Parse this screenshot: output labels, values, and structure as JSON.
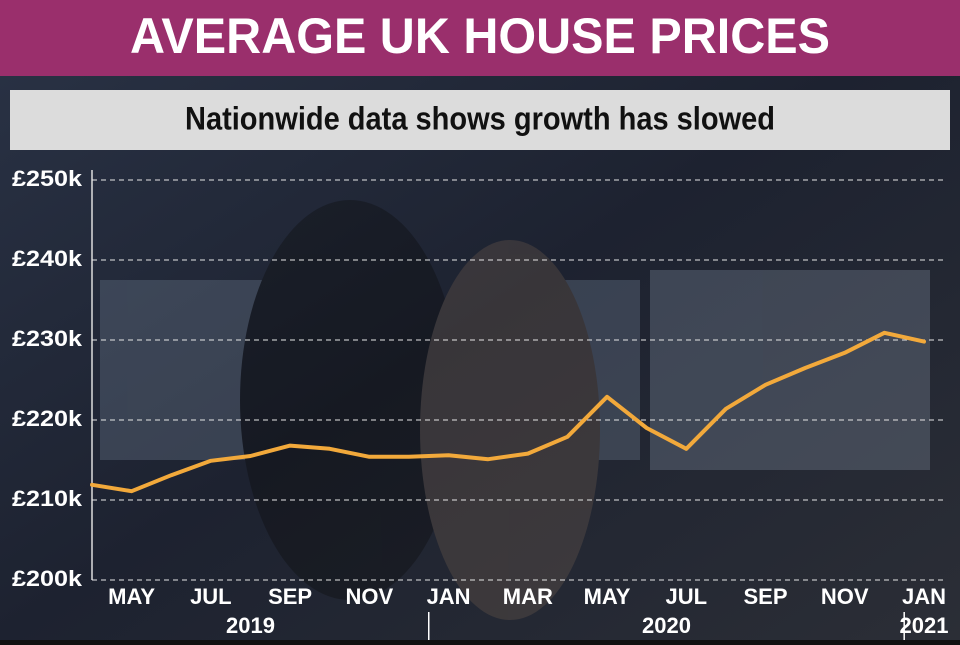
{
  "chart_data": {
    "type": "line",
    "title": "AVERAGE UK HOUSE PRICES",
    "subtitle": "Nationwide data shows growth has slowed",
    "categories": [
      null,
      "MAY",
      null,
      "JUL",
      null,
      "SEP",
      null,
      "NOV",
      null,
      "JAN",
      null,
      "MAR",
      null,
      "MAY",
      null,
      "JUL",
      null,
      "SEP",
      null,
      "NOV",
      null,
      "JAN"
    ],
    "year_labels": [
      "2019",
      "2020",
      "2021"
    ],
    "series": [
      {
        "name": "Average house price",
        "color": "#f2a93b",
        "values": [
          211900,
          211100,
          213100,
          214900,
          215500,
          216800,
          216400,
          215400,
          215400,
          215600,
          215100,
          215800,
          217900,
          222900,
          219000,
          216400,
          221400,
          224400,
          226500,
          228400,
          230900,
          229800
        ]
      }
    ],
    "ylim": [
      200000,
      250000
    ],
    "yticks": [
      {
        "value": 200000,
        "label": "£200k"
      },
      {
        "value": 210000,
        "label": "£210k"
      },
      {
        "value": 220000,
        "label": "£220k"
      },
      {
        "value": 230000,
        "label": "£230k"
      },
      {
        "value": 240000,
        "label": "£240k"
      },
      {
        "value": 250000,
        "label": "£250k"
      }
    ],
    "grid": true
  }
}
